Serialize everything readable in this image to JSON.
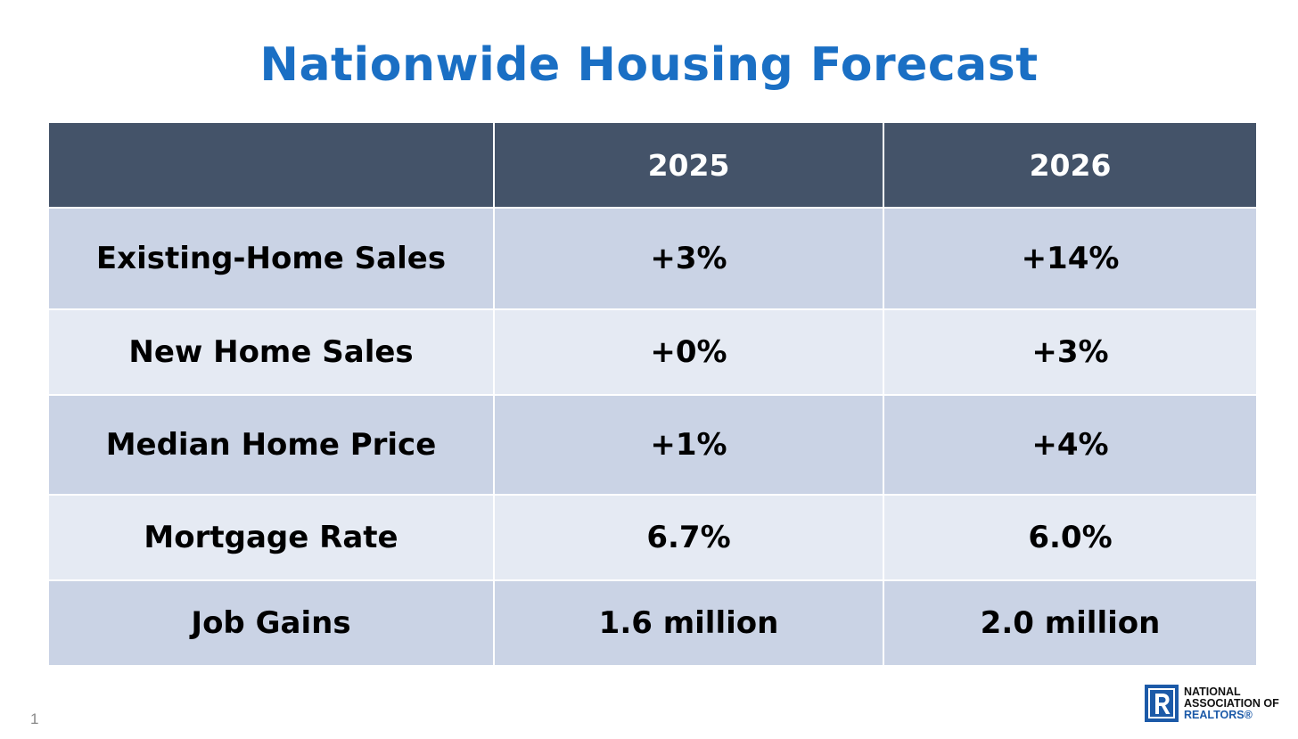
{
  "slide": {
    "title": "Nationwide Housing Forecast",
    "page_number": "1"
  },
  "table": {
    "headers": [
      "",
      "2025",
      "2026"
    ],
    "rows": [
      {
        "label": "Existing-Home Sales",
        "y2025": "+3%",
        "y2026": "+14%"
      },
      {
        "label": "New Home Sales",
        "y2025": "+0%",
        "y2026": "+3%"
      },
      {
        "label": "Median Home Price",
        "y2025": "+1%",
        "y2026": "+4%"
      },
      {
        "label": "Mortgage Rate",
        "y2025": "6.7%",
        "y2026": "6.0%"
      },
      {
        "label": "Job Gains",
        "y2025": "1.6 million",
        "y2026": "2.0 million"
      }
    ]
  },
  "logo": {
    "line1": "NATIONAL",
    "line2": "ASSOCIATION OF",
    "line3": "REALTORS®"
  },
  "colors": {
    "title": "#1a6fc4",
    "header_bg": "#445369",
    "row_dark": "#cad3e5",
    "row_light": "#e5eaf3",
    "logo_blue": "#1c5aa8"
  }
}
